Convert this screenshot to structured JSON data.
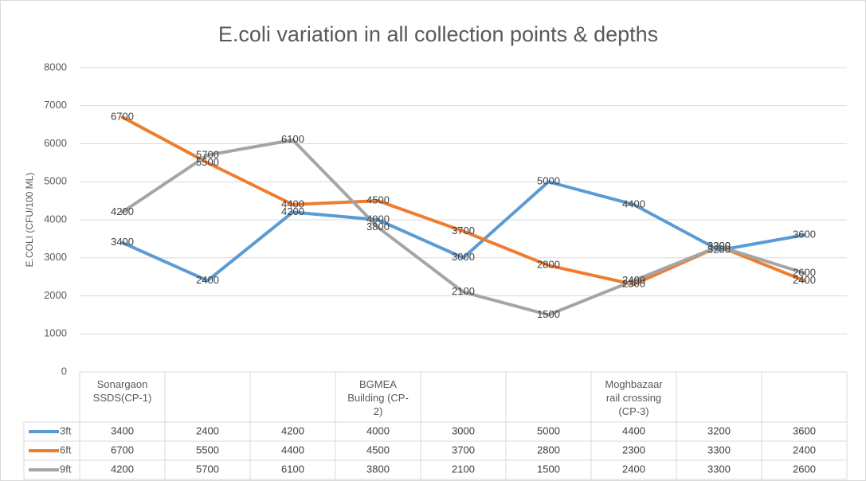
{
  "chart_data": {
    "type": "line",
    "title": "E.coli variation in all collection points & depths",
    "y_label": "E.COLI (CFU/100 ML)",
    "categories": [
      "Sonargaon SSDS(CP-1)",
      null,
      null,
      "BGMEA Building (CP-2)",
      null,
      null,
      "Moghbazaar rail crossing (CP-3)",
      null,
      null
    ],
    "series": [
      {
        "name": "3ft",
        "color": "#5b9bd5",
        "values": [
          3400,
          2400,
          4200,
          4000,
          3000,
          5000,
          4400,
          3200,
          3600
        ]
      },
      {
        "name": "6ft",
        "color": "#ed7d31",
        "values": [
          6700,
          5500,
          4400,
          4500,
          3700,
          2800,
          2300,
          3300,
          2400
        ]
      },
      {
        "name": "9ft",
        "color": "#a5a5a5",
        "values": [
          4200,
          5700,
          6100,
          3800,
          2100,
          1500,
          2400,
          3300,
          2600
        ]
      }
    ],
    "ylim": [
      0,
      8000
    ],
    "yticks": [
      0,
      1000,
      2000,
      3000,
      4000,
      5000,
      6000,
      7000,
      8000
    ],
    "grid": true,
    "data_labels": true,
    "data_table": true
  }
}
